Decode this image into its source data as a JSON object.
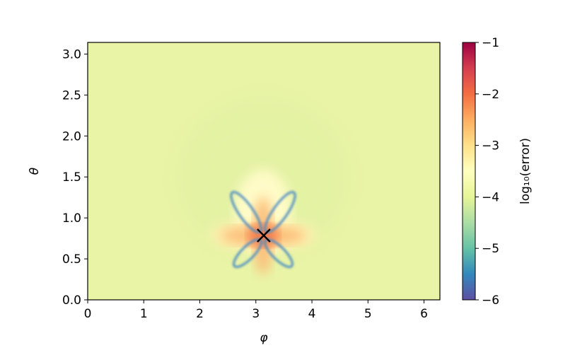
{
  "chart_data": {
    "type": "heatmap",
    "x_label": "φ",
    "y_label": "θ",
    "xlim": [
      0,
      6.283
    ],
    "ylim": [
      0,
      3.1416
    ],
    "xticks": [
      0,
      1,
      2,
      3,
      4,
      5,
      6
    ],
    "yticks": [
      {
        "value": 0,
        "label": "0.0"
      },
      {
        "value": 0.5,
        "label": "0.5"
      },
      {
        "value": 1,
        "label": "1.0"
      },
      {
        "value": 1.5,
        "label": "1.5"
      },
      {
        "value": 2,
        "label": "2.0"
      },
      {
        "value": 2.5,
        "label": "2.5"
      },
      {
        "value": 3,
        "label": "3.0"
      }
    ],
    "colorbar": {
      "label": "log₁₀(error)",
      "lim": [
        -6,
        -1
      ],
      "ticks": [
        {
          "value": -6,
          "label": "−6"
        },
        {
          "value": -5,
          "label": "−5"
        },
        {
          "value": -4,
          "label": "−4"
        },
        {
          "value": -3,
          "label": "−3"
        },
        {
          "value": -2,
          "label": "−2"
        },
        {
          "value": -1,
          "label": "−1"
        }
      ],
      "colors": [
        "#5e4fa2",
        "#3288bd",
        "#66c2a5",
        "#abdda4",
        "#e6f598",
        "#ffffbf",
        "#fee08b",
        "#fdae61",
        "#f46d43",
        "#d53e4f",
        "#9e0142"
      ]
    },
    "marker": {
      "x": [
        3.14
      ],
      "y": [
        0.785
      ],
      "color": "#000000"
    }
  }
}
